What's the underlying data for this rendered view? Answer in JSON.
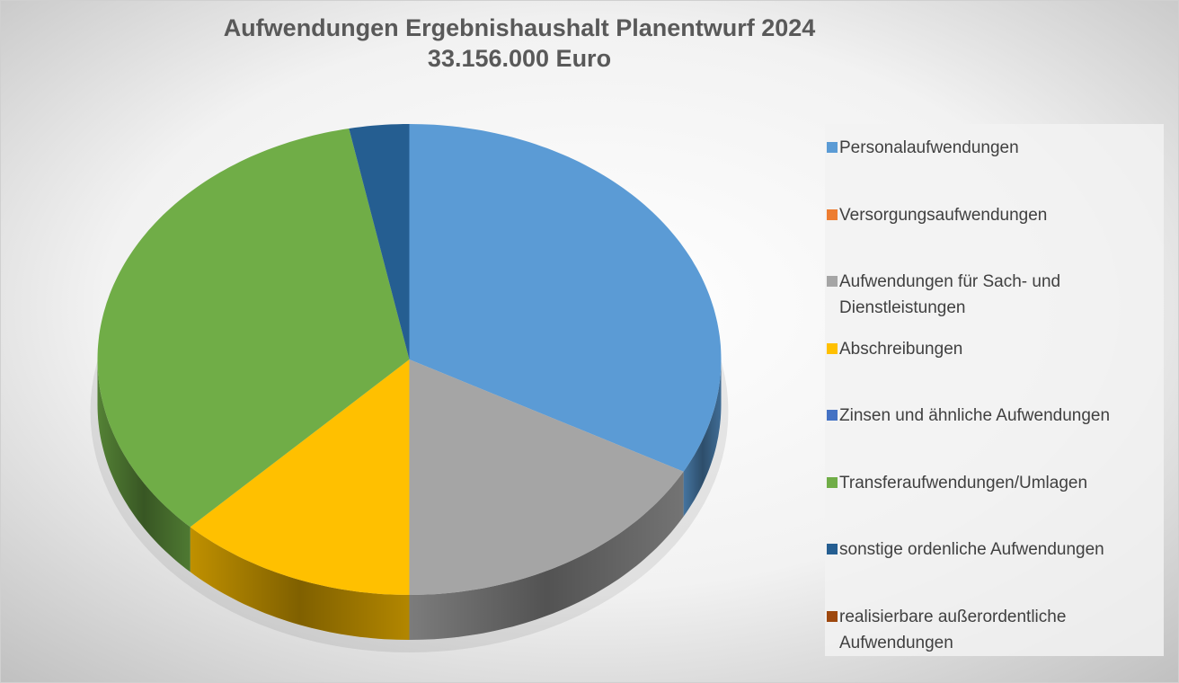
{
  "chart_data": {
    "type": "pie3d",
    "title": "Aufwendungen Ergebnishaushalt Planentwurf 2024",
    "subtitle": "33.156.000 Euro",
    "categories": [
      "Personalaufwendungen",
      "Versorgungsaufwendungen",
      "Aufwendungen für Sach- und Dienstleistungen",
      "Abschreibungen",
      "Zinsen und ähnliche Aufwendungen",
      "Transferaufwendungen/Umlagen",
      "sonstige ordenliche Aufwendungen",
      "realisierbare außerordentliche Aufwendungen"
    ],
    "values": [
      32.9,
      0,
      17.1,
      12.4,
      0,
      34.5,
      3.1,
      0
    ],
    "colors": [
      "#5b9bd5",
      "#ed7d31",
      "#a5a5a5",
      "#ffc000",
      "#4472c4",
      "#70ad47",
      "#255e91",
      "#9e480e"
    ],
    "legend": "right"
  }
}
